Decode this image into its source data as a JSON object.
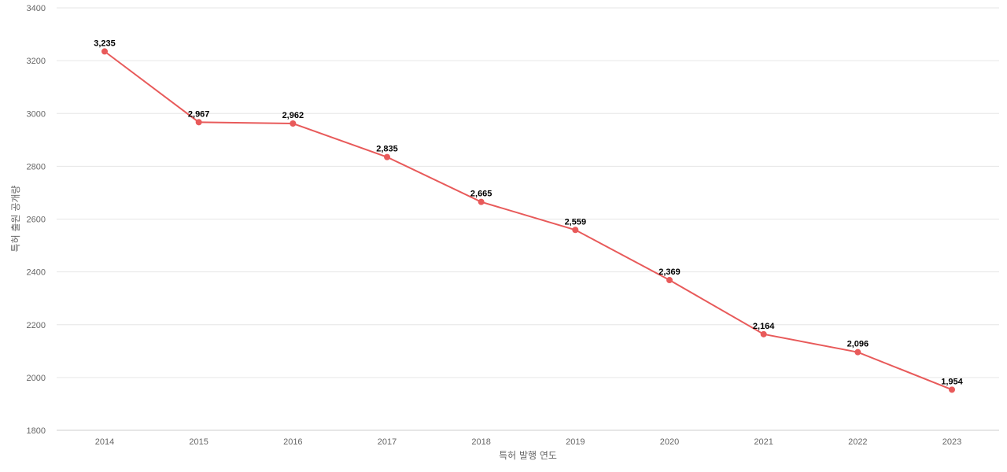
{
  "chart_data": {
    "type": "line",
    "categories": [
      "2014",
      "2015",
      "2016",
      "2017",
      "2018",
      "2019",
      "2020",
      "2021",
      "2022",
      "2023"
    ],
    "series": [
      {
        "values": [
          3235,
          2967,
          2962,
          2835,
          2665,
          2559,
          2369,
          2164,
          2096,
          1954
        ],
        "data_labels": [
          "3,235",
          "2,967",
          "2,962",
          "2,835",
          "2,665",
          "2,559",
          "2,369",
          "2,164",
          "2,096",
          "1,954"
        ],
        "color": "#e85a5a"
      }
    ],
    "xlabel": "특허 발행 연도",
    "ylabel": "특허 출원 공개량",
    "ylim": [
      1800,
      3400
    ],
    "yticks": [
      1800,
      2000,
      2200,
      2400,
      2600,
      2800,
      3000,
      3200,
      3400
    ],
    "grid": true,
    "legend": "none"
  }
}
